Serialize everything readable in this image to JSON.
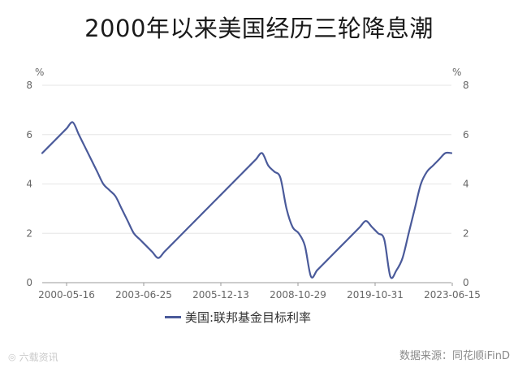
{
  "title": "2000年以来美国经历三轮降息潮",
  "unit_left": "%",
  "unit_right": "%",
  "legend_label": "美国:联邦基金目标利率",
  "source": "数据来源：同花顺iFinD",
  "watermark": "六载资讯",
  "colors": {
    "line": "#4a5a9a",
    "grid": "#e6e6e6",
    "axis": "#9a9a9a"
  },
  "chart_data": {
    "type": "line",
    "title": "2000年以来美国经历三轮降息潮",
    "xlabel": "",
    "ylabel": "%",
    "ylim": [
      0,
      8
    ],
    "yticks": [
      0,
      2,
      4,
      6,
      8
    ],
    "grid": true,
    "legend_position": "bottom",
    "x_tick_labels": [
      "2000-05-16",
      "2003-06-25",
      "2005-12-13",
      "2008-10-29",
      "2019-10-31",
      "2023-06-15"
    ],
    "series": [
      {
        "name": "美国:联邦基金目标利率",
        "color": "#4a5a9a",
        "values": [
          5.25,
          5.5,
          5.75,
          6.0,
          6.25,
          6.5,
          6.0,
          5.5,
          5.0,
          4.5,
          4.0,
          3.75,
          3.5,
          3.0,
          2.5,
          2.0,
          1.75,
          1.5,
          1.25,
          1.0,
          1.25,
          1.5,
          1.75,
          2.0,
          2.25,
          2.5,
          2.75,
          3.0,
          3.25,
          3.5,
          3.75,
          4.0,
          4.25,
          4.5,
          4.75,
          5.0,
          5.25,
          4.75,
          4.5,
          4.25,
          3.0,
          2.25,
          2.0,
          1.5,
          0.25,
          0.5,
          0.75,
          1.0,
          1.25,
          1.5,
          1.75,
          2.0,
          2.25,
          2.5,
          2.25,
          2.0,
          1.75,
          0.25,
          0.5,
          1.0,
          2.0,
          3.0,
          4.0,
          4.5,
          4.75,
          5.0,
          5.25,
          5.25
        ]
      }
    ]
  }
}
